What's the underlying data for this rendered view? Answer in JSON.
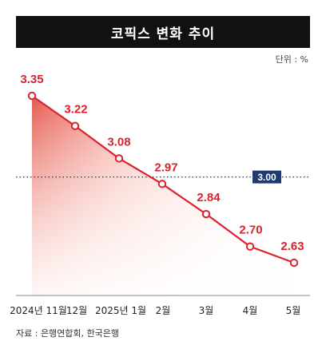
{
  "chart_data": {
    "type": "line",
    "title": "코픽스 변화 추이",
    "unit_label": "단위 : %",
    "categories": [
      "2024년 11월",
      "12월",
      "2025년 1월",
      "2월",
      "3월",
      "4월",
      "5월"
    ],
    "values": [
      3.35,
      3.22,
      3.08,
      2.97,
      2.84,
      2.7,
      2.63
    ],
    "value_labels": [
      "3.35",
      "3.22",
      "3.08",
      "2.97",
      "2.84",
      "2.70",
      "2.63"
    ],
    "reference": {
      "value": 3.0,
      "label": "3.00"
    },
    "series_color": "#d9232e",
    "reference_color": "#1f3a73",
    "grid": false,
    "source": "자료 : 은행연합회, 한국은행"
  }
}
